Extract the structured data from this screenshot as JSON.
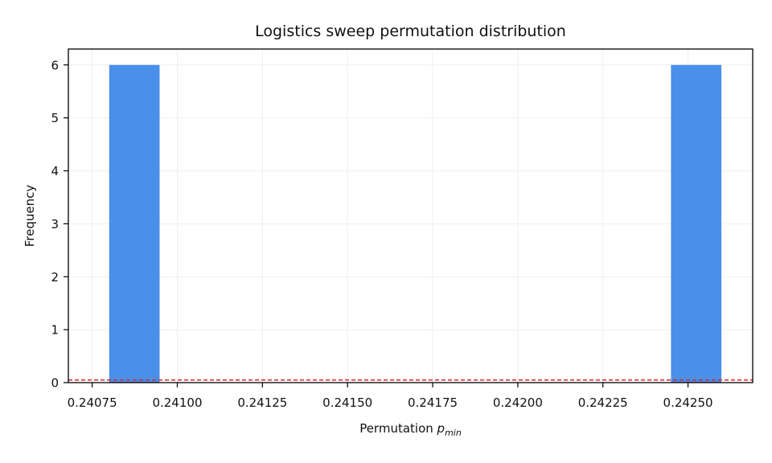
{
  "chart_data": {
    "type": "bar",
    "title": "Logistics sweep permutation distribution",
    "xlabel_prefix": "Permutation ",
    "xlabel_var": "p",
    "xlabel_sub": "min",
    "ylabel": "Frequency",
    "xlim": [
      0.24068,
      0.24269
    ],
    "ylim": [
      0,
      6.3
    ],
    "x_ticks": [
      0.24075,
      0.241,
      0.24125,
      0.2415,
      0.24175,
      0.242,
      0.24225,
      0.2425
    ],
    "x_tick_labels": [
      "0.24075",
      "0.24100",
      "0.24125",
      "0.24150",
      "0.24175",
      "0.24200",
      "0.24225",
      "0.24250"
    ],
    "y_ticks": [
      0,
      1,
      2,
      3,
      4,
      5,
      6
    ],
    "y_tick_labels": [
      "0",
      "1",
      "2",
      "3",
      "4",
      "5",
      "6"
    ],
    "grid": true,
    "bars": [
      {
        "x_start": 0.2408,
        "x_end": 0.240948,
        "count": 6
      },
      {
        "x_start": 0.24245,
        "x_end": 0.242598,
        "count": 6
      }
    ],
    "reference_line": {
      "y": 0.05,
      "style": "dashed"
    },
    "colors": {
      "bar": "#4a8fea",
      "reference_line": "#d62728",
      "grid": "#ebebeb",
      "axes": "#000000"
    }
  }
}
